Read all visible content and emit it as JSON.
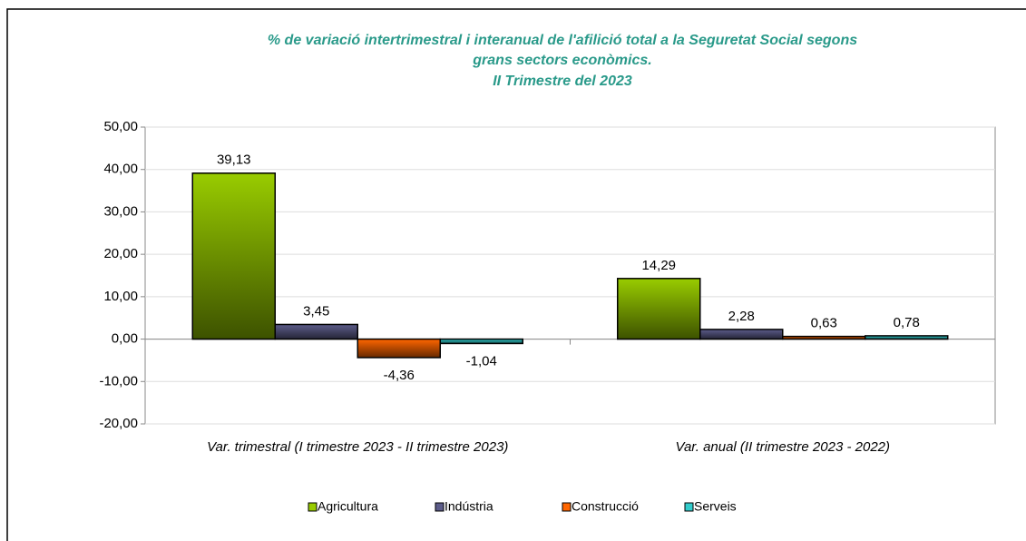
{
  "chart_data": {
    "type": "bar",
    "title": [
      "% de variació intertrimestral i interanual de l'afilició total a la Seguretat Social segons",
      "grans sectors econòmics.",
      "II Trimestre del 2023"
    ],
    "categories": [
      "Var. trimestral (I trimestre 2023 - II trimestre 2023)",
      "Var. anual (II trimestre 2023 - 2022)"
    ],
    "series": [
      {
        "name": "Agricultura",
        "color": "#99cc00",
        "values": [
          39.13,
          14.29
        ],
        "value_labels": [
          "39,13",
          "14,29"
        ]
      },
      {
        "name": "Indústria",
        "color": "#5c5c8a",
        "values": [
          3.45,
          2.28
        ],
        "value_labels": [
          "3,45",
          "2,28"
        ]
      },
      {
        "name": "Construcció",
        "color": "#ff6600",
        "values": [
          -4.36,
          0.63
        ],
        "value_labels": [
          "-4,36",
          "0,63"
        ]
      },
      {
        "name": "Serveis",
        "color": "#33cccc",
        "values": [
          -1.04,
          0.78
        ],
        "value_labels": [
          "-1,04",
          "0,78"
        ]
      }
    ],
    "ylim": [
      -20,
      50
    ],
    "yticks": [
      {
        "value": -20,
        "label": "-20,00"
      },
      {
        "value": -10,
        "label": "-10,00"
      },
      {
        "value": 0,
        "label": "0,00"
      },
      {
        "value": 10,
        "label": "10,00"
      },
      {
        "value": 20,
        "label": "20,00"
      },
      {
        "value": 30,
        "label": "30,00"
      },
      {
        "value": 40,
        "label": "40,00"
      },
      {
        "value": 50,
        "label": "50,00"
      }
    ],
    "grid": true,
    "legend": "bottom"
  }
}
